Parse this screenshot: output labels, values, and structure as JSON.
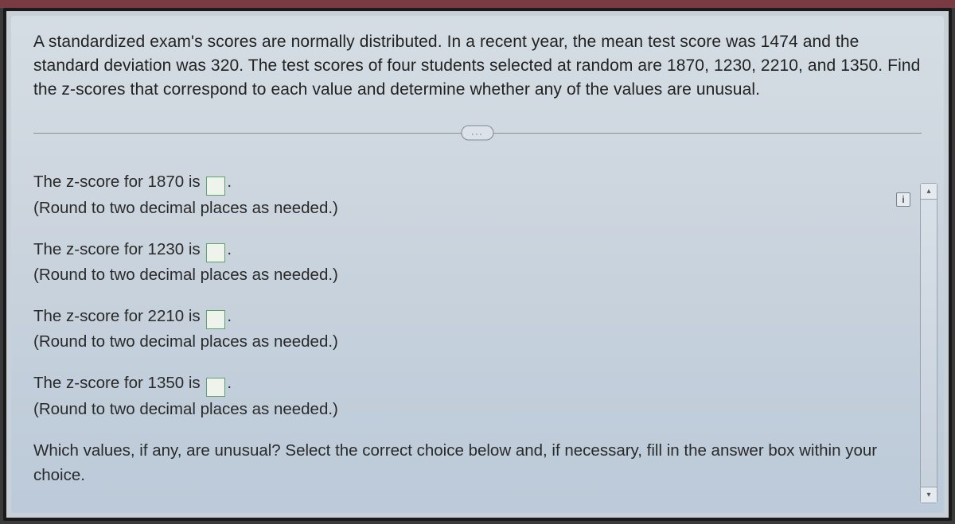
{
  "question": {
    "text": "A standardized exam's scores are normally distributed. In a recent year, the mean test score was 1474 and the standard deviation was 320. The test scores of four students selected at random are 1870, 1230, 2210, and 1350. Find the z-scores that correspond to each value and determine whether any of the values are unusual."
  },
  "divider": {
    "label": "..."
  },
  "items": [
    {
      "prompt_pre": "The z-score for 1870 is ",
      "prompt_post": ".",
      "hint": "(Round to two decimal places as needed.)"
    },
    {
      "prompt_pre": "The z-score for 1230 is ",
      "prompt_post": ".",
      "hint": "(Round to two decimal places as needed.)"
    },
    {
      "prompt_pre": "The z-score for 2210 is ",
      "prompt_post": ".",
      "hint": "(Round to two decimal places as needed.)"
    },
    {
      "prompt_pre": "The z-score for 1350 is ",
      "prompt_post": ".",
      "hint": "(Round to two decimal places as needed.)"
    }
  ],
  "final_question": "Which values, if any, are unusual? Select the correct choice below and, if necessary, fill in the answer box within your choice.",
  "hint_icon": "i",
  "scroll": {
    "up": "▴",
    "down": "▾"
  },
  "colors": {
    "panel_bg_top": "#d5dde4",
    "panel_bg_bottom": "#bccad9",
    "text": "#2a2a2a",
    "input_border": "#5aa36a",
    "input_bg": "#eef3ec",
    "divider": "#8a8f96"
  }
}
